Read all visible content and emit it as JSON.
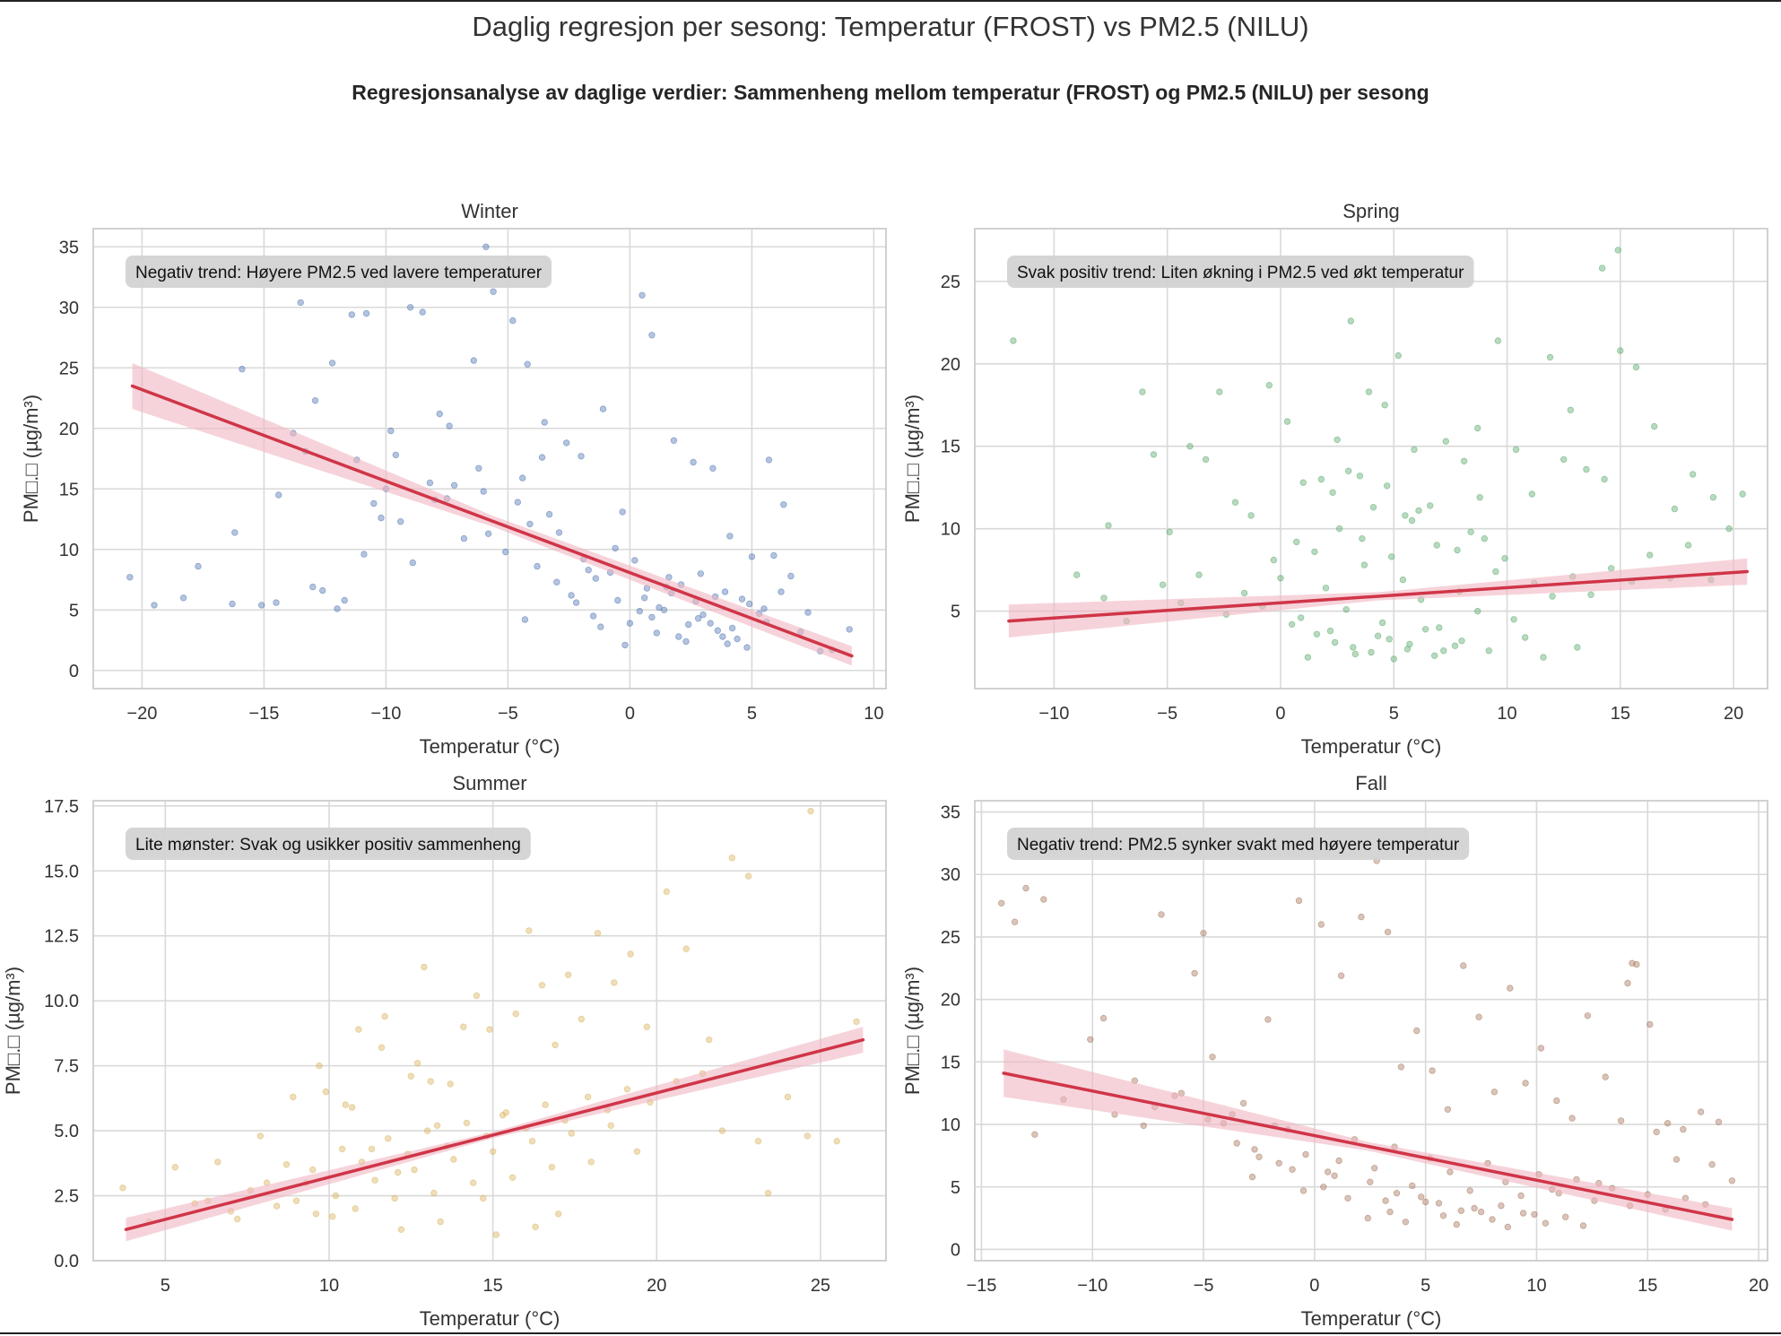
{
  "figure": {
    "title": "Daglig regresjon per sesong: Temperatur (FROST) vs PM2.5 (NILU)",
    "subtitle": "Regresjonsanalyse av daglige verdier: Sammenheng mellom temperatur (FROST) og PM2.5 (NILU) per sesong"
  },
  "colors": {
    "regression_line": "#d03548",
    "ci_band": "#f0b6c2",
    "grid": "#d9d9d9",
    "annotation_bg": "#d3d3d3"
  },
  "chart_data": [
    {
      "type": "scatter",
      "title": "Winter",
      "xlabel": "Temperatur (°C)",
      "ylabel": "PM□.□ (µg/m³)",
      "xlim": [
        -22,
        10.5
      ],
      "ylim": [
        -1.5,
        36.5
      ],
      "xticks": [
        -20,
        -15,
        -10,
        -5,
        0,
        5,
        10
      ],
      "xtick_labels": [
        "−20",
        "−15",
        "−10",
        "−5",
        "0",
        "5",
        "10"
      ],
      "yticks": [
        0,
        5,
        10,
        15,
        20,
        25,
        30,
        35
      ],
      "ytick_labels": [
        "0",
        "5",
        "10",
        "15",
        "20",
        "25",
        "30",
        "35"
      ],
      "point_color": "#4c72b0",
      "annotation": "Negativ trend: Høyere PM2.5 ved lavere temperaturer",
      "regression": {
        "x": [
          -20.4,
          9.1
        ],
        "y": [
          23.5,
          1.2
        ],
        "ci_start": 1.9,
        "ci_mid": 0.45,
        "ci_end": 0.8
      },
      "points": {
        "x": [
          -20.5,
          -19.5,
          -18.3,
          -17.7,
          -16.3,
          -15.9,
          -14.5,
          -13.8,
          -13.5,
          -12.9,
          -12.2,
          -11.7,
          -11.4,
          -10.8,
          -10.5,
          -10.2,
          -9.6,
          -9.0,
          -8.5,
          -7.8,
          -7.2,
          -6.4,
          -5.9,
          -5.6,
          -4.8,
          -4.2,
          -3.5,
          -2.6,
          -2.0,
          -1.1,
          -0.3,
          0.5,
          0.9,
          1.8,
          2.6,
          3.4,
          4.1,
          5.0,
          5.7,
          6.3,
          7.0,
          7.8,
          9.0,
          -3.0,
          -2.2,
          -1.5,
          -0.8,
          0.0,
          0.7,
          1.4,
          2.1,
          2.8,
          3.5,
          4.2,
          4.9,
          5.6,
          6.2,
          -6.8,
          -5.1,
          -4.3,
          -8.9,
          -11.2,
          -12.6,
          -13.3,
          -9.4,
          -7.5,
          -5.8,
          -3.8,
          -4.6,
          -2.4,
          -0.6,
          1.2,
          2.4,
          3.8,
          4.6,
          5.3,
          6.6,
          -0.2,
          0.4,
          1.1,
          1.7,
          2.3,
          3.0,
          3.6,
          4.4,
          -1.7,
          -1.2,
          -0.5,
          0.2,
          0.9,
          1.5,
          2.0,
          2.7,
          3.3,
          4.0,
          4.8,
          5.5,
          -6.2,
          -7.4,
          -9.8,
          -10.9,
          -8.2,
          -6.0,
          -4.4,
          -3.3,
          -2.9,
          -1.9,
          -1.4,
          0.6,
          1.6,
          2.9,
          3.9,
          5.9,
          7.3,
          8.3,
          -14.4,
          -16.2,
          -12.0,
          -13.0,
          -15.1,
          -10.0,
          -8.0,
          -4.1,
          -3.6
        ],
        "y": [
          7.7,
          5.4,
          6.0,
          8.6,
          5.5,
          24.9,
          5.6,
          19.6,
          30.4,
          22.3,
          25.4,
          5.8,
          29.4,
          29.5,
          13.8,
          12.6,
          17.8,
          30.0,
          29.6,
          21.2,
          15.3,
          25.6,
          35.0,
          31.3,
          28.9,
          25.3,
          20.5,
          18.8,
          17.7,
          21.6,
          13.1,
          31.0,
          27.7,
          19.0,
          17.2,
          16.7,
          11.1,
          9.4,
          17.4,
          13.7,
          3.2,
          1.6,
          3.4,
          7.3,
          5.6,
          4.5,
          8.1,
          3.9,
          6.8,
          5.0,
          7.1,
          4.3,
          6.1,
          3.5,
          5.5,
          4.0,
          6.5,
          10.9,
          9.8,
          4.2,
          8.9,
          17.4,
          6.6,
          18.1,
          12.3,
          14.2,
          11.3,
          8.6,
          13.9,
          6.2,
          10.1,
          5.2,
          3.8,
          2.8,
          5.9,
          4.7,
          7.8,
          2.1,
          4.9,
          3.1,
          6.4,
          2.4,
          4.6,
          3.3,
          2.6,
          8.3,
          3.6,
          5.8,
          9.1,
          4.4,
          6.9,
          2.8,
          5.7,
          3.9,
          2.2,
          1.9,
          5.1,
          16.7,
          20.2,
          19.8,
          9.6,
          15.5,
          14.8,
          15.9,
          12.9,
          11.4,
          9.2,
          7.6,
          6.0,
          7.7,
          8.0,
          6.5,
          9.5,
          4.8,
          1.7,
          14.5,
          11.4,
          5.1,
          6.9,
          5.4,
          15.0,
          14.1,
          12.1,
          17.6
        ]
      }
    },
    {
      "type": "scatter",
      "title": "Spring",
      "xlabel": "Temperatur (°C)",
      "ylabel": "PM□.□ (µg/m³)",
      "xlim": [
        -13.5,
        21.5
      ],
      "ylim": [
        0.3,
        28.2
      ],
      "xticks": [
        -10,
        -5,
        0,
        5,
        10,
        15,
        20
      ],
      "xtick_labels": [
        "−10",
        "−5",
        "0",
        "5",
        "10",
        "15",
        "20"
      ],
      "yticks": [
        5,
        10,
        15,
        20,
        25
      ],
      "ytick_labels": [
        "5",
        "10",
        "15",
        "20",
        "25"
      ],
      "point_color": "#55a868",
      "annotation": "Svak positiv trend: Liten økning i PM2.5 ved økt temperatur",
      "regression": {
        "x": [
          -12.0,
          20.6
        ],
        "y": [
          4.4,
          7.4
        ],
        "ci_start": 1.0,
        "ci_mid": 0.25,
        "ci_end": 0.8
      },
      "points": {
        "x": [
          -11.8,
          -9.0,
          -7.6,
          -6.1,
          -5.6,
          -4.9,
          -4.0,
          -3.3,
          -2.7,
          -2.0,
          -1.3,
          -0.5,
          0.3,
          1.0,
          1.8,
          2.5,
          3.1,
          3.9,
          4.6,
          5.2,
          5.9,
          6.6,
          7.3,
          8.1,
          8.8,
          9.6,
          10.4,
          11.1,
          11.9,
          12.8,
          13.5,
          14.2,
          15.0,
          15.7,
          16.5,
          17.4,
          18.2,
          19.1,
          19.8,
          20.4,
          14.3,
          14.9,
          3.5,
          8.7,
          9.0,
          12.5,
          0.5,
          1.6,
          2.4,
          3.2,
          4.0,
          4.8,
          5.6,
          6.4,
          7.2,
          8.0,
          -7.8,
          -6.8,
          -5.2,
          -4.4,
          -3.6,
          -2.4,
          -1.6,
          -0.8,
          0.0,
          0.9,
          2.0,
          2.9,
          3.7,
          4.5,
          5.4,
          6.2,
          7.0,
          7.9,
          8.7,
          9.5,
          10.3,
          11.2,
          12.0,
          12.9,
          13.7,
          14.6,
          15.5,
          16.3,
          17.2,
          18.0,
          19.0,
          1.2,
          2.2,
          3.3,
          4.3,
          5.0,
          5.7,
          6.8,
          7.7,
          9.2,
          10.8,
          11.6,
          13.1,
          -0.3,
          0.7,
          1.5,
          2.6,
          3.6,
          4.9,
          5.8,
          6.9,
          7.8,
          8.4,
          9.9,
          4.1,
          5.5,
          6.1,
          4.7,
          3.0,
          2.3
        ],
        "y": [
          21.4,
          7.2,
          10.2,
          18.3,
          14.5,
          9.8,
          15.0,
          14.2,
          18.3,
          11.6,
          10.8,
          18.7,
          16.5,
          12.8,
          13.0,
          15.4,
          22.6,
          18.3,
          17.5,
          20.5,
          14.8,
          11.4,
          15.3,
          14.1,
          11.9,
          21.4,
          14.8,
          12.1,
          20.4,
          17.2,
          13.6,
          25.8,
          20.8,
          19.8,
          16.2,
          11.2,
          13.3,
          11.9,
          10.0,
          12.1,
          13.0,
          26.9,
          13.2,
          16.1,
          9.4,
          14.2,
          4.2,
          3.6,
          3.1,
          2.8,
          2.5,
          3.3,
          2.7,
          3.9,
          2.6,
          3.2,
          5.8,
          4.4,
          6.6,
          5.5,
          7.2,
          4.8,
          6.1,
          5.3,
          7.0,
          4.6,
          6.4,
          5.1,
          7.8,
          4.3,
          6.9,
          5.7,
          4.0,
          6.2,
          5.0,
          7.4,
          4.5,
          6.7,
          5.9,
          7.1,
          6.0,
          7.6,
          6.8,
          8.4,
          7.0,
          9.0,
          6.9,
          2.2,
          3.8,
          2.4,
          3.5,
          2.1,
          3.0,
          2.3,
          2.9,
          2.6,
          3.4,
          2.2,
          2.8,
          8.1,
          9.2,
          8.6,
          10.0,
          9.4,
          8.3,
          10.5,
          9.0,
          8.7,
          9.8,
          8.2,
          11.3,
          10.8,
          11.1,
          12.6,
          13.5,
          12.2
        ]
      }
    },
    {
      "type": "scatter",
      "title": "Summer",
      "xlabel": "Temperatur (°C)",
      "ylabel": "PM□.□ (µg/m³)",
      "xlim": [
        2.8,
        27.0
      ],
      "ylim": [
        0.0,
        17.7
      ],
      "xticks": [
        5,
        10,
        15,
        20,
        25
      ],
      "xtick_labels": [
        "5",
        "10",
        "15",
        "20",
        "25"
      ],
      "yticks": [
        0.0,
        2.5,
        5.0,
        7.5,
        10.0,
        12.5,
        15.0,
        17.5
      ],
      "ytick_labels": [
        "0.0",
        "2.5",
        "5.0",
        "7.5",
        "10.0",
        "12.5",
        "15.0",
        "17.5"
      ],
      "point_color": "#d8b05a",
      "annotation": "Lite mønster: Svak og usikker positiv sammenheng",
      "regression": {
        "x": [
          3.8,
          26.3
        ],
        "y": [
          1.2,
          8.5
        ],
        "ci_start": 0.45,
        "ci_mid": 0.12,
        "ci_end": 0.5
      },
      "points": {
        "x": [
          3.7,
          4.5,
          5.3,
          5.9,
          6.6,
          7.2,
          7.9,
          8.4,
          8.9,
          9.3,
          9.7,
          10.1,
          10.5,
          10.9,
          11.3,
          11.7,
          12.1,
          12.5,
          12.9,
          13.3,
          13.7,
          14.1,
          14.5,
          14.9,
          15.3,
          15.7,
          16.1,
          16.5,
          16.9,
          17.3,
          17.7,
          18.2,
          18.7,
          19.2,
          19.7,
          20.3,
          20.9,
          21.6,
          22.3,
          22.8,
          23.4,
          24.0,
          24.7,
          25.5,
          26.1,
          9.0,
          9.6,
          10.2,
          10.8,
          11.4,
          12.0,
          12.6,
          13.2,
          13.8,
          14.4,
          15.0,
          15.6,
          16.2,
          16.8,
          17.4,
          18.0,
          18.6,
          19.4,
          8.1,
          8.7,
          9.5,
          10.4,
          11.0,
          11.8,
          12.4,
          13.0,
          13.6,
          14.2,
          14.8,
          15.4,
          16.0,
          16.6,
          17.2,
          17.9,
          18.5,
          19.1,
          19.8,
          20.6,
          21.4,
          6.3,
          7.0,
          7.6,
          12.2,
          13.4,
          15.1,
          16.3,
          17.0,
          14.7,
          13.1,
          12.7,
          11.6,
          10.7,
          9.9,
          22.0,
          23.1,
          24.6
        ],
        "y": [
          2.8,
          1.5,
          3.6,
          2.2,
          3.8,
          1.6,
          4.8,
          2.1,
          6.3,
          3.0,
          7.5,
          1.7,
          6.0,
          8.9,
          4.3,
          9.4,
          3.4,
          7.1,
          11.3,
          5.2,
          6.8,
          9.0,
          10.2,
          8.9,
          5.6,
          9.5,
          12.7,
          10.6,
          8.3,
          11.0,
          9.3,
          12.6,
          10.7,
          11.8,
          9.0,
          14.2,
          12.0,
          8.5,
          15.5,
          14.8,
          2.6,
          6.3,
          17.3,
          4.6,
          9.2,
          2.3,
          1.8,
          2.5,
          2.0,
          3.1,
          2.4,
          3.5,
          2.6,
          3.9,
          3.0,
          4.2,
          3.2,
          4.6,
          3.6,
          4.9,
          3.8,
          5.2,
          4.2,
          3.0,
          3.7,
          3.5,
          4.3,
          3.8,
          4.7,
          4.1,
          5.0,
          4.4,
          5.3,
          4.8,
          5.7,
          5.1,
          6.0,
          5.4,
          6.3,
          5.8,
          6.6,
          6.1,
          6.9,
          7.2,
          2.3,
          1.9,
          2.7,
          1.2,
          1.5,
          1.0,
          1.3,
          1.8,
          2.4,
          6.9,
          7.6,
          8.2,
          5.9,
          6.5,
          5.0,
          4.6,
          4.8
        ]
      }
    },
    {
      "type": "scatter",
      "title": "Fall",
      "xlabel": "Temperatur (°C)",
      "ylabel": "PM□.□ (µg/m³)",
      "xlim": [
        -15.3,
        20.4
      ],
      "ylim": [
        -0.9,
        35.9
      ],
      "xticks": [
        -15,
        -10,
        -5,
        0,
        5,
        10,
        15,
        20
      ],
      "xtick_labels": [
        "−15",
        "−10",
        "−5",
        "0",
        "5",
        "10",
        "15",
        "20"
      ],
      "yticks": [
        0,
        5,
        10,
        15,
        20,
        25,
        30,
        35
      ],
      "ytick_labels": [
        "0",
        "5",
        "10",
        "15",
        "20",
        "25",
        "30",
        "35"
      ],
      "point_color": "#a5735a",
      "annotation": "Negativ trend: PM2.5 synker svakt med høyere temperatur",
      "regression": {
        "x": [
          -14.0,
          18.8
        ],
        "y": [
          14.1,
          2.4
        ],
        "ci_start": 1.9,
        "ci_mid": 0.35,
        "ci_end": 0.9
      },
      "points": {
        "x": [
          -14.1,
          -13.5,
          -13.0,
          -12.6,
          -12.2,
          -10.1,
          -9.5,
          -7.2,
          -6.9,
          -5.4,
          -5.0,
          -4.6,
          -3.7,
          -2.1,
          -1.2,
          -0.7,
          0.3,
          1.2,
          2.1,
          2.8,
          3.3,
          3.9,
          4.6,
          5.3,
          6.0,
          6.7,
          7.4,
          8.1,
          8.8,
          9.5,
          10.2,
          10.9,
          11.6,
          12.3,
          13.1,
          13.8,
          14.5,
          15.1,
          15.9,
          16.6,
          17.4,
          18.2,
          18.8,
          14.1,
          14.3,
          -8.1,
          -6.3,
          -4.8,
          -3.2,
          -1.8,
          -0.4,
          0.9,
          1.8,
          2.7,
          3.6,
          4.4,
          5.2,
          6.1,
          7.0,
          7.8,
          8.6,
          9.3,
          10.1,
          11.0,
          11.8,
          12.6,
          13.4,
          14.2,
          15.0,
          15.8,
          16.7,
          17.6,
          2.4,
          3.4,
          4.1,
          5.0,
          5.8,
          6.4,
          7.2,
          8.0,
          8.7,
          9.4,
          10.4,
          11.3,
          12.1,
          -2.8,
          -1.6,
          -0.5,
          0.6,
          1.5,
          2.5,
          3.2,
          4.8,
          6.6,
          8.4,
          9.9,
          -3.5,
          -2.5,
          -1.0,
          0.4,
          1.1,
          3.7,
          5.6,
          7.5,
          10.7,
          12.8,
          -11.3,
          -9.0,
          -7.7,
          -6.0,
          -4.1,
          -2.7,
          16.3,
          17.9,
          15.4
        ],
        "y": [
          27.7,
          26.2,
          28.9,
          9.2,
          28.0,
          16.8,
          18.5,
          11.4,
          26.8,
          22.1,
          25.3,
          15.4,
          10.8,
          18.4,
          9.6,
          27.9,
          26.0,
          21.9,
          26.6,
          31.1,
          25.4,
          14.6,
          17.5,
          14.3,
          11.2,
          22.7,
          18.6,
          12.6,
          20.9,
          13.3,
          16.1,
          11.9,
          10.5,
          18.7,
          13.8,
          10.3,
          22.8,
          18.0,
          10.1,
          9.6,
          11.0,
          10.2,
          5.5,
          21.3,
          22.9,
          13.5,
          12.3,
          10.4,
          11.7,
          9.9,
          7.6,
          5.9,
          8.8,
          6.5,
          8.2,
          5.1,
          7.3,
          6.2,
          4.7,
          6.9,
          5.4,
          4.3,
          6.0,
          4.5,
          5.6,
          3.9,
          4.9,
          3.5,
          4.4,
          3.2,
          4.1,
          3.6,
          2.5,
          3.0,
          2.2,
          3.8,
          2.7,
          2.0,
          3.3,
          2.4,
          1.8,
          2.9,
          2.1,
          2.6,
          1.9,
          5.8,
          6.9,
          4.7,
          6.2,
          4.1,
          5.4,
          3.9,
          4.2,
          3.1,
          3.5,
          2.8,
          8.5,
          7.4,
          6.4,
          5.0,
          7.1,
          4.5,
          3.7,
          3.0,
          4.8,
          5.3,
          12.0,
          10.8,
          9.9,
          12.5,
          10.1,
          8.0,
          7.2,
          6.8,
          9.4
        ]
      }
    }
  ]
}
